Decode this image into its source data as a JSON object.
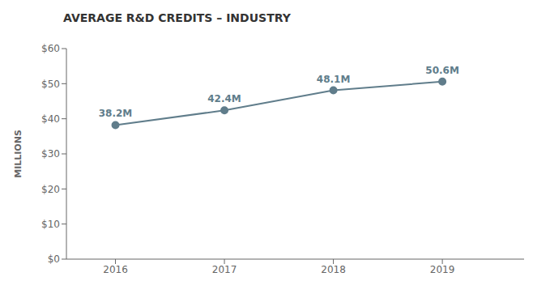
{
  "chart_data": {
    "type": "line",
    "title": "AVERAGE R&D CREDITS – INDUSTRY",
    "ylabel": "MILLIONS",
    "x": [
      2016,
      2017,
      2018,
      2019
    ],
    "values": [
      38.2,
      42.4,
      48.1,
      50.6
    ],
    "value_labels": [
      "38.2M",
      "42.4M",
      "48.1M",
      "50.6M"
    ],
    "data_labels": true,
    "color": "#607d8b",
    "marker": "circle",
    "xlim": [
      2015.55,
      2019.75
    ],
    "xticks": [
      2016,
      2017,
      2018,
      2019
    ],
    "ylim": [
      0,
      60
    ],
    "yticks": [
      {
        "value": 0,
        "label": "$0"
      },
      {
        "value": 10,
        "label": "$10"
      },
      {
        "value": 20,
        "label": "$20"
      },
      {
        "value": 30,
        "label": "$30"
      },
      {
        "value": 40,
        "label": "$40"
      },
      {
        "value": 50,
        "label": "$50"
      },
      {
        "value": 60,
        "label": "$60"
      }
    ],
    "grid": false
  }
}
